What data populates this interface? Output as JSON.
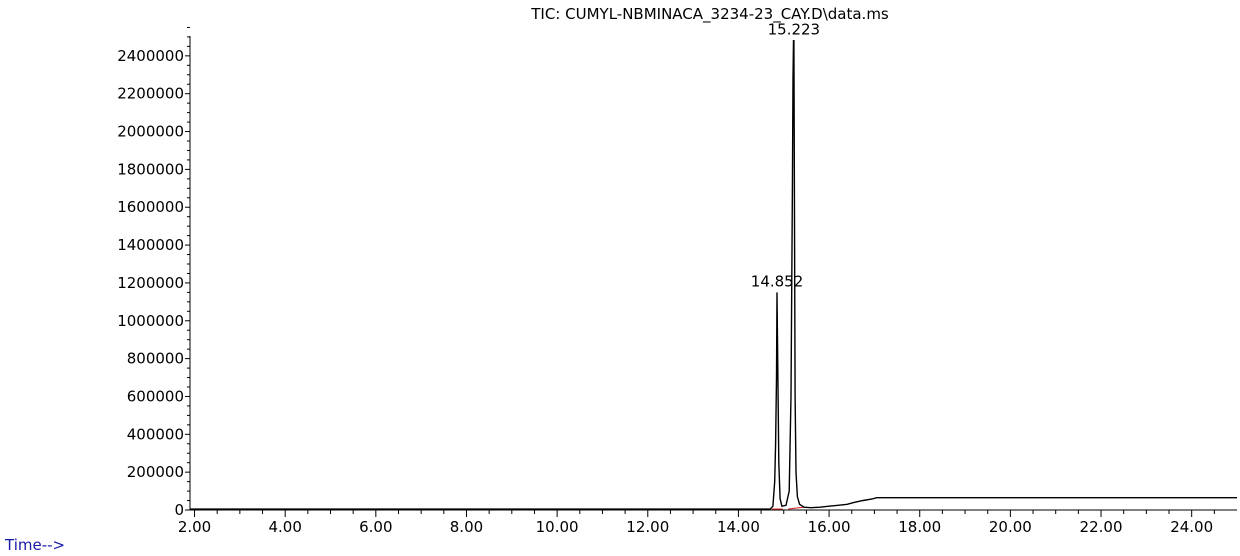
{
  "chart_data": {
    "type": "line",
    "title": "TIC: CUMYL-NBMINACA_3234-23_CAY.D\\data.ms",
    "xlabel": "Time-->",
    "ylabel": "",
    "xlim": [
      1.9,
      25.0
    ],
    "ylim": [
      0,
      2600000
    ],
    "x_ticks": [
      2,
      4,
      6,
      8,
      10,
      12,
      14,
      16,
      18,
      20,
      22,
      24
    ],
    "x_tick_labels": [
      "2.00",
      "4.00",
      "6.00",
      "8.00",
      "10.00",
      "12.00",
      "14.00",
      "16.00",
      "18.00",
      "20.00",
      "22.00",
      "24.00"
    ],
    "y_ticks": [
      0,
      200000,
      400000,
      600000,
      800000,
      1000000,
      1200000,
      1400000,
      1600000,
      1800000,
      2000000,
      2200000,
      2400000
    ],
    "y_tick_labels": [
      "0",
      "200000",
      "400000",
      "600000",
      "800000",
      "1000000",
      "1200000",
      "1400000",
      "1600000",
      "1800000",
      "2000000",
      "2200000",
      "2400000"
    ],
    "peaks": [
      {
        "rt": 14.852,
        "label": "14.852",
        "height": 1150000
      },
      {
        "rt": 15.223,
        "label": "15.223",
        "height": 2480000
      }
    ],
    "series": [
      {
        "x": [
          1.9,
          14.7,
          14.76,
          14.8,
          14.82,
          14.84,
          14.852,
          14.87,
          14.89,
          14.92,
          14.96,
          15.05,
          15.12,
          15.16,
          15.19,
          15.205,
          15.215,
          15.223,
          15.235,
          15.25,
          15.27,
          15.3,
          15.35,
          15.45,
          15.6,
          15.8,
          16.0,
          16.2,
          16.4,
          16.55,
          16.75,
          16.95,
          17.05,
          17.5,
          20.0,
          22.0,
          24.0,
          25.0
        ],
        "y": [
          5000,
          5000,
          20000,
          150000,
          350000,
          700000,
          1150000,
          700000,
          250000,
          60000,
          20000,
          25000,
          100000,
          600000,
          1700000,
          2280000,
          2480000,
          2480000,
          1700000,
          600000,
          200000,
          70000,
          30000,
          15000,
          12000,
          15000,
          20000,
          25000,
          30000,
          40000,
          50000,
          58000,
          65000,
          65000,
          65000,
          65000,
          65000,
          65000
        ]
      }
    ],
    "baselines": [
      {
        "x": [
          14.74,
          14.98
        ],
        "y": [
          5000,
          5000
        ],
        "color": "#d42020"
      },
      {
        "x": [
          15.1,
          15.45
        ],
        "y": [
          5000,
          15000
        ],
        "color": "#d42020"
      }
    ],
    "colors": {
      "trace": "#000000",
      "axis": "#000000",
      "baseline": "#d42020",
      "time_label": "#1a1aa8"
    }
  }
}
